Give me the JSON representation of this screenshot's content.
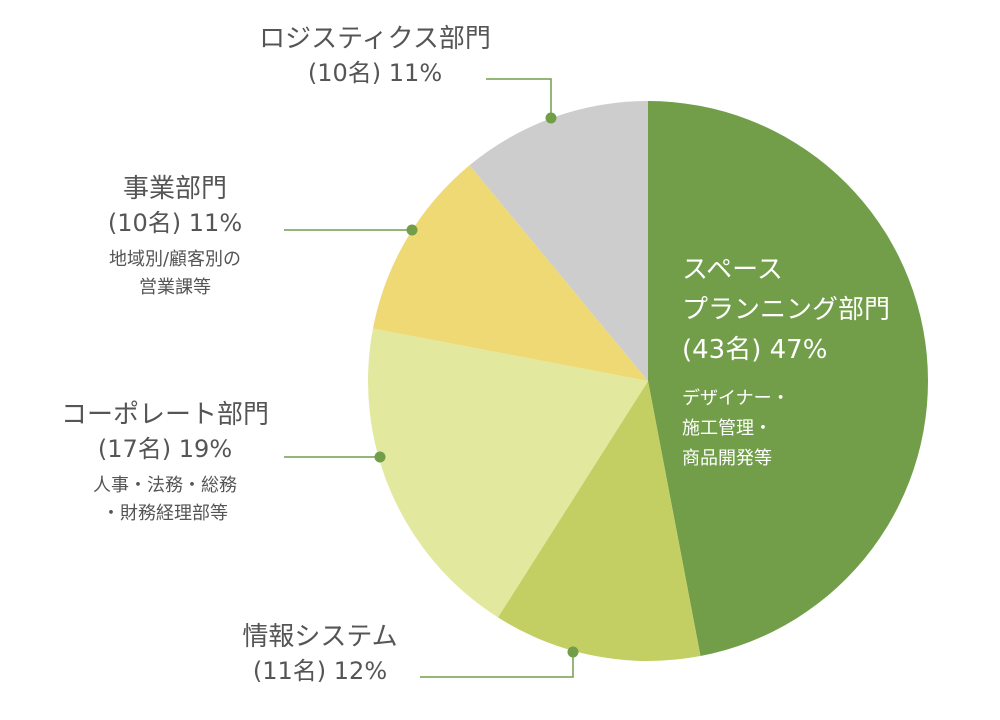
{
  "chart_data": {
    "type": "pie",
    "title": "",
    "total_unit": "名",
    "slices": [
      {
        "name": "スペースプランニング部門",
        "name_lines": [
          "スペース",
          "プランニング部門"
        ],
        "count_label": "(43名)",
        "percent_label": "47%",
        "percent": 47,
        "detail_lines": [
          "デザイナー・",
          "施工管理・",
          "商品開発等"
        ],
        "color": "#729e4a"
      },
      {
        "name": "情報システム",
        "name_lines": [
          "情報システム"
        ],
        "count_label": "(11名)",
        "percent_label": "12%",
        "percent": 12,
        "detail_lines": [],
        "color": "#c4cf63"
      },
      {
        "name": "コーポレート部門",
        "name_lines": [
          "コーポレート部門"
        ],
        "count_label": "(17名)",
        "percent_label": "19%",
        "percent": 19,
        "detail_lines": [
          "人事・法務・総務",
          "・財務経理部等"
        ],
        "color": "#e2e99e"
      },
      {
        "name": "事業部門",
        "name_lines": [
          "事業部門"
        ],
        "count_label": "(10名)",
        "percent_label": "11%",
        "percent": 11,
        "detail_lines": [
          "地域別/顧客別の",
          "営業課等"
        ],
        "color": "#eed975"
      },
      {
        "name": "ロジスティクス部門",
        "name_lines": [
          "ロジスティクス部門"
        ],
        "count_label": "(10名)",
        "percent_label": "11%",
        "percent": 11,
        "detail_lines": [],
        "color": "#cdcdcd"
      }
    ],
    "start_angle": "12 o'clock",
    "direction": "clockwise",
    "leader_color": "#729e4a"
  }
}
